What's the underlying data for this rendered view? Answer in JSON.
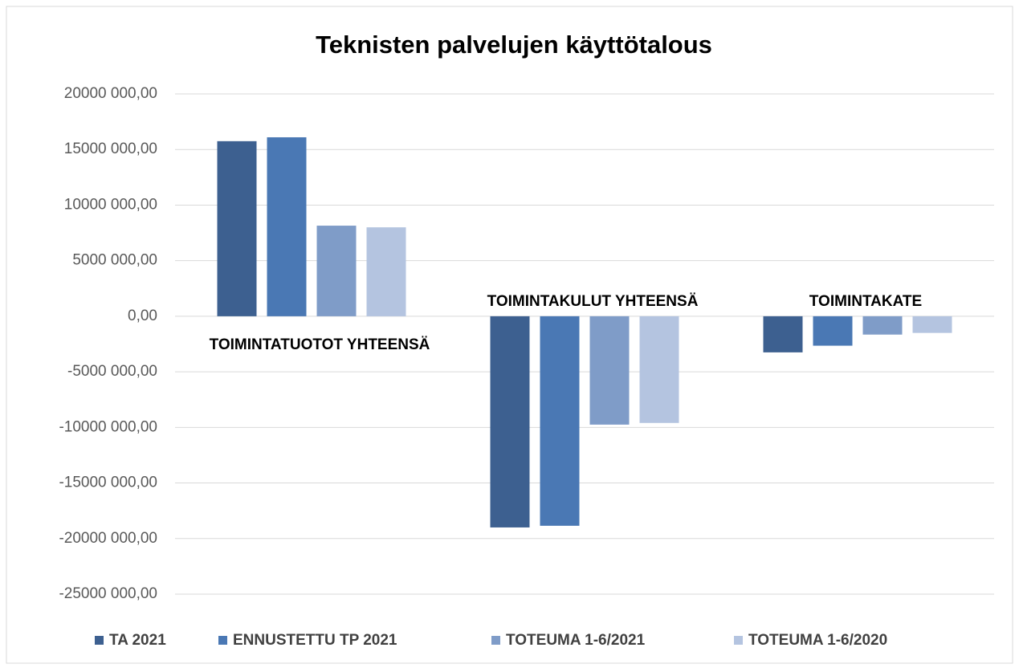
{
  "chart_data": {
    "type": "bar",
    "title": "Teknisten palvelujen käyttötalous",
    "categories": [
      "TOIMINTATUOTOT YHTEENSÄ",
      "TOIMINTAKULUT YHTEENSÄ",
      "TOIMINTAKATE"
    ],
    "series": [
      {
        "name": "TA 2021",
        "color": "#3d6090",
        "values": [
          15750000,
          -19000000,
          -3250000
        ]
      },
      {
        "name": "ENNUSTETTU TP 2021",
        "color": "#4a78b4",
        "values": [
          16100000,
          -18850000,
          -2650000
        ]
      },
      {
        "name": "TOTEUMA 1-6/2021",
        "color": "#7f9cc8",
        "values": [
          8150000,
          -9750000,
          -1650000
        ]
      },
      {
        "name": "TOTEUMA 1-6/2020",
        "color": "#b4c4e0",
        "values": [
          8000000,
          -9600000,
          -1500000
        ]
      }
    ],
    "ylim": [
      -25000000,
      20000000
    ],
    "yticks": [
      {
        "value": -25000000,
        "label": "-25000 000,00"
      },
      {
        "value": -20000000,
        "label": "-20000 000,00"
      },
      {
        "value": -15000000,
        "label": "-15000 000,00"
      },
      {
        "value": -10000000,
        "label": "-10000 000,00"
      },
      {
        "value": -5000000,
        "label": "-5000 000,00"
      },
      {
        "value": 0,
        "label": "0,00"
      },
      {
        "value": 5000000,
        "label": "5000 000,00"
      },
      {
        "value": 10000000,
        "label": "10000 000,00"
      },
      {
        "value": 15000000,
        "label": "15000 000,00"
      },
      {
        "value": 20000000,
        "label": "20000 000,00"
      }
    ],
    "grid": true,
    "legend": "bottom"
  }
}
